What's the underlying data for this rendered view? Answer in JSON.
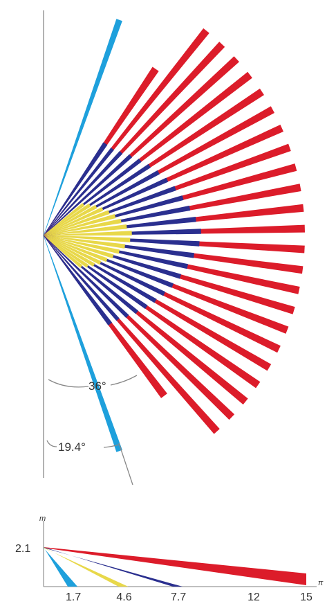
{
  "fan": {
    "angle_labels": [
      "36°",
      "19.4°"
    ]
  },
  "mini_plot": {
    "y_axis_label": "m",
    "x_axis_label": "π",
    "y_tick": "2.1",
    "x_ticks": [
      "1.7",
      "4.6",
      "7.7",
      "12",
      "15"
    ],
    "bands": [
      {
        "end_x": 1.7,
        "color": "#1ea0dc"
      },
      {
        "end_x": 4.6,
        "color": "#e8d84a"
      },
      {
        "end_x": 7.7,
        "color": "#2a2f8f"
      },
      {
        "end_x": 15,
        "color": "#dc1c2a"
      }
    ]
  },
  "colors": {
    "cyan": "#1ea0dc",
    "yellow": "#e8d84a",
    "navy": "#2a2f8f",
    "red": "#dc1c2a",
    "axis": "#999999"
  }
}
